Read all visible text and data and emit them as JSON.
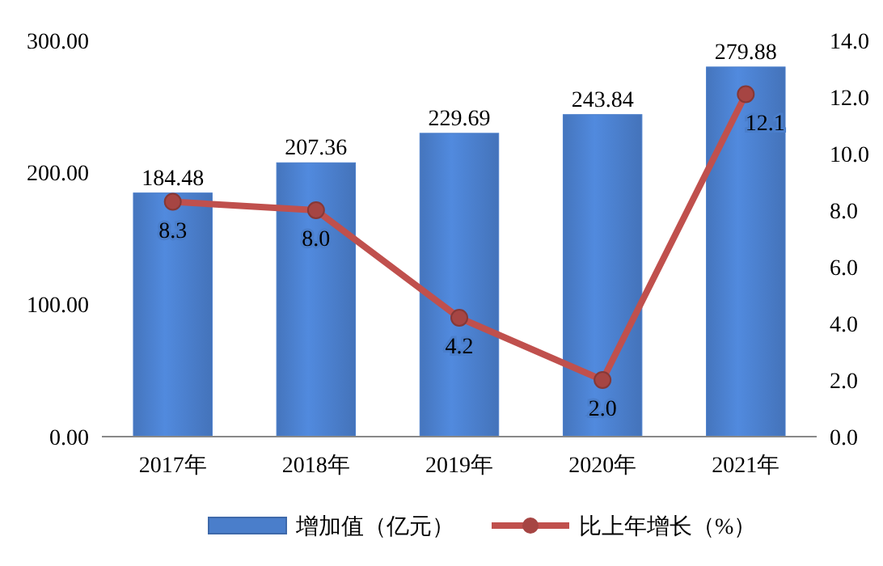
{
  "chart_data": {
    "type": "bar",
    "categories": [
      "2017年",
      "2018年",
      "2019年",
      "2020年",
      "2021年"
    ],
    "series": [
      {
        "name": "增加值（亿元）",
        "color": "#4a7ecb",
        "values": [
          184.48,
          207.36,
          229.69,
          243.84,
          279.88
        ],
        "value_labels": [
          "184.48",
          "207.36",
          "229.69",
          "243.84",
          "279.88"
        ]
      },
      {
        "name": "比上年增长（%）",
        "type": "line",
        "axis": "y2",
        "color": "#c0504d",
        "values": [
          8.3,
          8.0,
          4.2,
          2.0,
          12.1
        ],
        "value_labels": [
          "8.3",
          "8.0",
          "4.2",
          "2.0",
          "12.1"
        ]
      }
    ],
    "ylim": [
      0,
      300
    ],
    "yticks": [
      {
        "value": 0,
        "label": "0.00"
      },
      {
        "value": 100,
        "label": "100.00"
      },
      {
        "value": 200,
        "label": "200.00"
      },
      {
        "value": 300,
        "label": "300.00"
      }
    ],
    "y2lim": [
      0,
      14
    ],
    "y2ticks": [
      {
        "value": 0,
        "label": "0.0"
      },
      {
        "value": 2,
        "label": "2.0"
      },
      {
        "value": 4,
        "label": "4.0"
      },
      {
        "value": 6,
        "label": "6.0"
      },
      {
        "value": 8,
        "label": "8.0"
      },
      {
        "value": 10,
        "label": "10.0"
      },
      {
        "value": 12,
        "label": "12.0"
      },
      {
        "value": 14,
        "label": "14.0"
      }
    ],
    "legend": "bottom",
    "marker": "circle",
    "line_style": "solid",
    "grid": false
  }
}
